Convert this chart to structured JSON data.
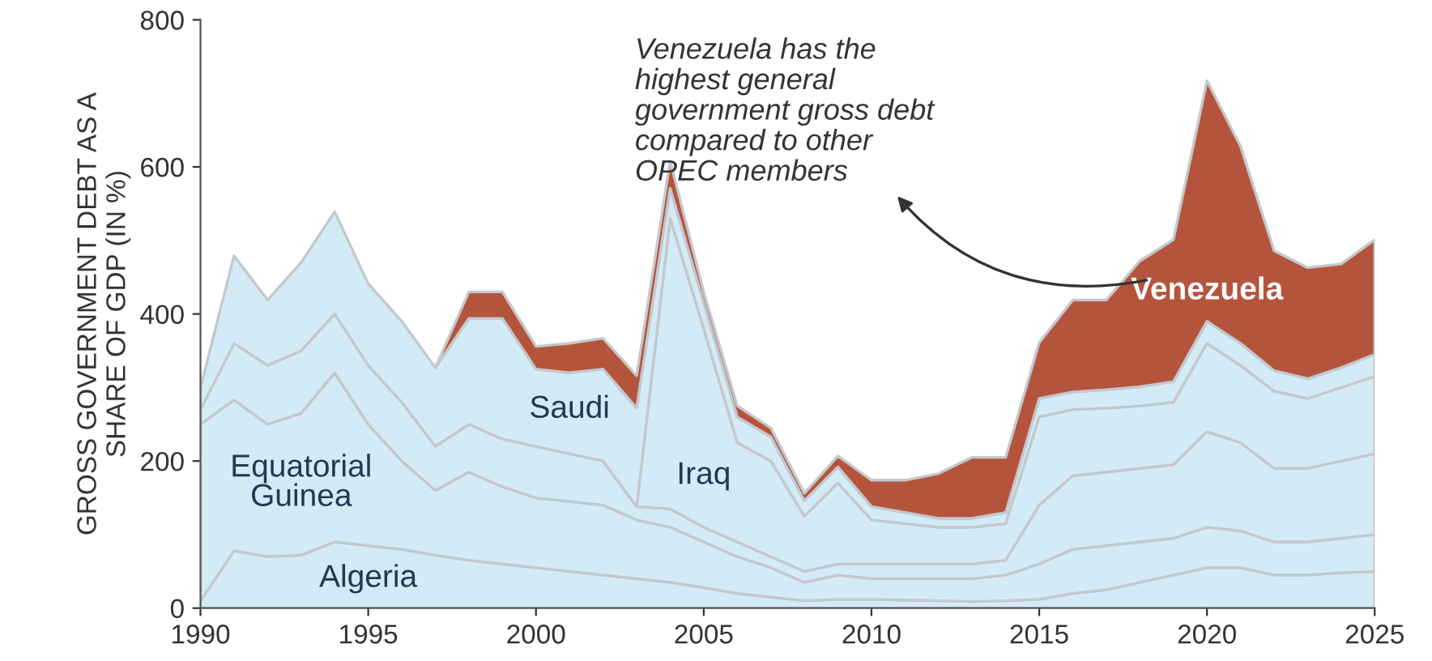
{
  "chart_data": {
    "type": "area",
    "stacked": true,
    "ylabel": "GROSS GOVERNMENT DEBT AS A\nSHARE OF GDP (IN %)",
    "x": [
      1990,
      1991,
      1992,
      1993,
      1994,
      1995,
      1996,
      1997,
      1998,
      1999,
      2000,
      2001,
      2002,
      2003,
      2004,
      2005,
      2006,
      2007,
      2008,
      2009,
      2010,
      2011,
      2012,
      2013,
      2014,
      2015,
      2016,
      2017,
      2018,
      2019,
      2020,
      2021,
      2022,
      2023,
      2024,
      2025
    ],
    "series": [
      {
        "name": "Algeria",
        "color": "#d3ebf7",
        "values": [
          10,
          78,
          70,
          72,
          90,
          85,
          80,
          72,
          65,
          60,
          55,
          50,
          45,
          40,
          35,
          28,
          20,
          15,
          10,
          12,
          12,
          11,
          10,
          9,
          10,
          12,
          20,
          25,
          35,
          45,
          55,
          55,
          45,
          45,
          48,
          50
        ]
      },
      {
        "name": "Equatorial\nGuinea",
        "color": "#d3ebf7",
        "values": [
          240,
          205,
          180,
          193,
          230,
          165,
          120,
          88,
          120,
          105,
          95,
          95,
          95,
          80,
          75,
          62,
          50,
          40,
          25,
          33,
          28,
          29,
          30,
          31,
          35,
          48,
          60,
          60,
          55,
          50,
          55,
          50,
          45,
          45,
          47,
          50
        ]
      },
      {
        "color": "#d3ebf7",
        "values": [
          20,
          77,
          80,
          85,
          80,
          80,
          80,
          60,
          65,
          65,
          70,
          65,
          60,
          18,
          25,
          20,
          20,
          15,
          15,
          15,
          20,
          20,
          20,
          20,
          20,
          80,
          100,
          100,
          100,
          100,
          130,
          120,
          100,
          100,
          105,
          110
        ]
      },
      {
        "name": "Iraq",
        "color": "#d3ebf7",
        "values": [
          null,
          null,
          null,
          null,
          null,
          null,
          null,
          null,
          null,
          null,
          null,
          null,
          null,
          0,
          395,
          270,
          135,
          130,
          75,
          110,
          60,
          55,
          50,
          50,
          50,
          120,
          90,
          87,
          85,
          85,
          120,
          105,
          105,
          95,
          100,
          105
        ]
      },
      {
        "name": "Saudi",
        "color": "#d3ebf7",
        "values": [
          30,
          119,
          89,
          120,
          139,
          111,
          110,
          107,
          144,
          164,
          105,
          110,
          125,
          134,
          41,
          35,
          35,
          33,
          21,
          22,
          18,
          15,
          12,
          12,
          15,
          25,
          24,
          25,
          26,
          28,
          30,
          30,
          28,
          27,
          27,
          30
        ]
      },
      {
        "name": "Venezuela",
        "color": "#b5543c",
        "values": [
          null,
          null,
          null,
          null,
          null,
          null,
          null,
          0,
          36,
          36,
          31,
          40,
          42,
          44,
          37,
          15,
          15,
          12,
          10,
          15,
          36,
          44,
          61,
          83,
          75,
          76,
          125,
          122,
          171,
          193,
          327,
          268,
          163,
          151,
          141,
          156
        ]
      }
    ],
    "xlim": [
      1990,
      2025
    ],
    "xticks": [
      1990,
      1995,
      2000,
      2005,
      2010,
      2015,
      2020,
      2025
    ],
    "ylim": [
      0,
      800
    ],
    "yticks": [
      0,
      200,
      400,
      600,
      800
    ],
    "annotations": [
      "Venezuela has the\nhighest general\ngovernment gross debt\ncompared to other\nOPEC members"
    ],
    "grid": false,
    "legend": false
  }
}
